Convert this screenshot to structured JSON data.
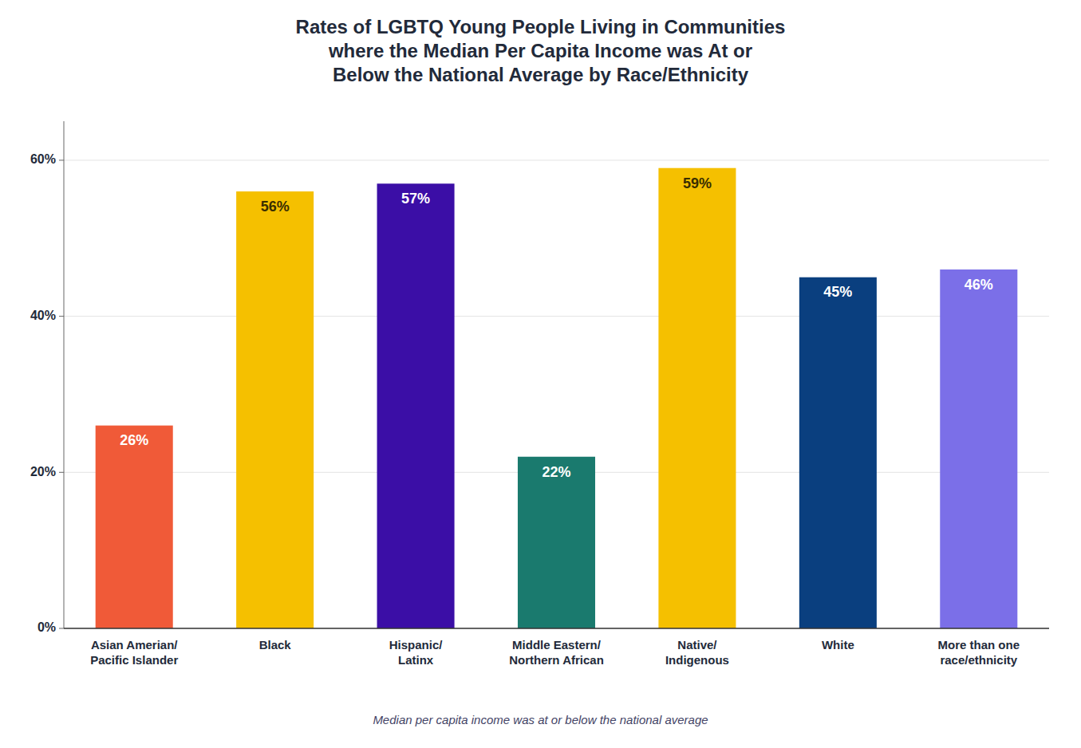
{
  "chart_data": {
    "type": "bar",
    "title": "Rates of LGBTQ Young People Living in Communities\nwhere the Median Per Capita Income was At or\nBelow the National Average by Race/Ethnicity",
    "categories": [
      "Asian Amerian/\nPacific Islander",
      "Black",
      "Hispanic/\nLatinx",
      "Middle Eastern/\nNorthern African",
      "Native/\nIndigenous",
      "White",
      "More than one\nrace/ethnicity"
    ],
    "values": [
      26,
      56,
      57,
      22,
      59,
      45,
      46
    ],
    "value_labels": [
      "26%",
      "56%",
      "57%",
      "22%",
      "59%",
      "45%",
      "46%"
    ],
    "data_labels": true,
    "colors": [
      "#F05A38",
      "#F5C000",
      "#3B0EA6",
      "#1A7A6E",
      "#F5C000",
      "#0A3F7F",
      "#7B6FE8"
    ],
    "ylim": [
      0,
      65
    ],
    "yticks": [
      {
        "value": 0,
        "label": "0%"
      },
      {
        "value": 20,
        "label": "20%"
      },
      {
        "value": 40,
        "label": "40%"
      },
      {
        "value": 60,
        "label": "60%"
      }
    ],
    "grid": true,
    "annotations": [
      "Median per capita income was at or below the national average"
    ]
  }
}
